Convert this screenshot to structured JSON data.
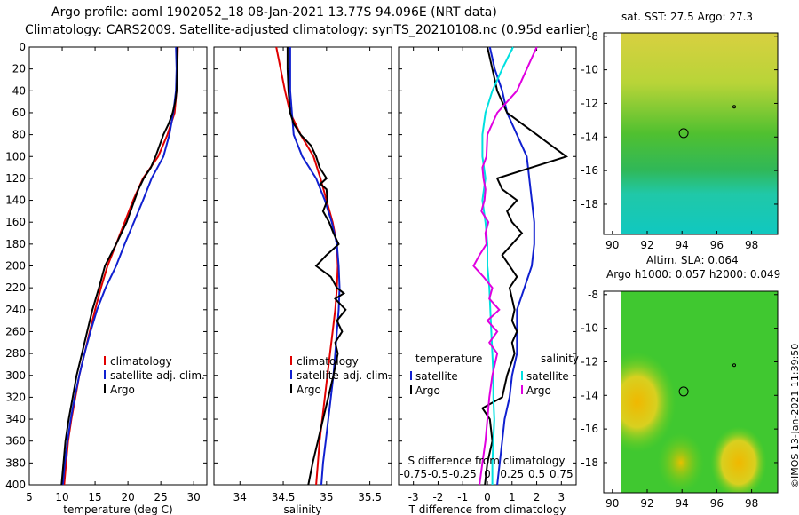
{
  "header": {
    "line1": "Argo profile: aoml 1902052_18 08-Jan-2021 13.77S 94.096E (NRT data)",
    "line2": "Climatology: CARS2009. Satellite-adjusted climatology: synTS_20210108.nc (0.95d earlier)"
  },
  "colors": {
    "climatology": "#e00000",
    "satellite": "#1020d0",
    "argo": "#000000",
    "sat_temp": "#00e0e0",
    "salinity_diff": "#e000e0"
  },
  "chart_data": [
    {
      "type": "line",
      "id": "temperature",
      "xlabel": "temperature (deg C)",
      "ylabel": "depth",
      "xlim": [
        5,
        32
      ],
      "ylim": [
        400,
        0
      ],
      "xticks": [
        "5",
        "10",
        "15",
        "20",
        "25",
        "30"
      ],
      "yticks": [
        "0",
        "20",
        "40",
        "60",
        "80",
        "100",
        "120",
        "140",
        "160",
        "180",
        "200",
        "220",
        "240",
        "260",
        "280",
        "300",
        "320",
        "340",
        "360",
        "380",
        "400"
      ],
      "legend": [
        "climatology",
        "satellite-adj. clim.",
        "Argo"
      ],
      "series": [
        {
          "name": "climatology",
          "depth": [
            0,
            20,
            40,
            60,
            80,
            100,
            120,
            140,
            160,
            180,
            200,
            220,
            240,
            260,
            280,
            300,
            320,
            340,
            360,
            380,
            400
          ],
          "values": [
            27.6,
            27.5,
            27.4,
            27.1,
            26.0,
            24.6,
            22.3,
            20.8,
            19.5,
            18.2,
            16.9,
            15.9,
            15.0,
            14.2,
            13.4,
            12.6,
            12.0,
            11.4,
            10.9,
            10.6,
            10.3
          ]
        },
        {
          "name": "satellite-adj. clim.",
          "depth": [
            0,
            20,
            40,
            60,
            80,
            100,
            120,
            140,
            160,
            180,
            200,
            220,
            240,
            260,
            280,
            300,
            320,
            340,
            360,
            380,
            400
          ],
          "values": [
            27.3,
            27.4,
            27.3,
            26.9,
            26.3,
            25.4,
            23.6,
            22.3,
            20.9,
            19.5,
            18.2,
            16.6,
            15.3,
            14.3,
            13.4,
            12.6,
            11.9,
            11.3,
            10.8,
            10.4,
            10.1
          ]
        },
        {
          "name": "Argo",
          "depth": [
            0,
            20,
            40,
            50,
            60,
            70,
            80,
            90,
            100,
            110,
            120,
            130,
            140,
            160,
            180,
            200,
            220,
            240,
            260,
            280,
            300,
            320,
            340,
            360,
            380,
            400
          ],
          "values": [
            27.5,
            27.5,
            27.4,
            27.2,
            26.8,
            26.2,
            25.4,
            24.8,
            24.2,
            23.5,
            22.4,
            21.6,
            21.0,
            19.8,
            18.2,
            16.5,
            15.6,
            14.6,
            13.8,
            13.0,
            12.2,
            11.6,
            11.0,
            10.5,
            10.2,
            9.9
          ]
        }
      ]
    },
    {
      "type": "line",
      "id": "salinity",
      "xlabel": "salinity",
      "ylabel": "depth",
      "xlim": [
        33.7,
        35.75
      ],
      "ylim": [
        400,
        0
      ],
      "xticks": [
        "34",
        "34.5",
        "35",
        "35.5"
      ],
      "legend": [
        "climatology",
        "satellite-adj. clim.",
        "Argo"
      ],
      "series": [
        {
          "name": "climatology",
          "depth": [
            0,
            20,
            40,
            60,
            80,
            100,
            120,
            140,
            160,
            180,
            200,
            220,
            240,
            260,
            280,
            300,
            320,
            340,
            360,
            380,
            400
          ],
          "values": [
            34.42,
            34.47,
            34.52,
            34.58,
            34.7,
            34.85,
            34.93,
            35.0,
            35.07,
            35.12,
            35.13,
            35.12,
            35.1,
            35.07,
            35.04,
            35.01,
            34.98,
            34.95,
            34.92,
            34.9,
            34.88
          ]
        },
        {
          "name": "satellite-adj. clim.",
          "depth": [
            0,
            20,
            40,
            60,
            80,
            100,
            120,
            140,
            160,
            180,
            200,
            220,
            240,
            260,
            280,
            300,
            320,
            340,
            360,
            380,
            400
          ],
          "values": [
            34.58,
            34.58,
            34.58,
            34.6,
            34.62,
            34.72,
            34.88,
            34.98,
            35.06,
            35.12,
            35.14,
            35.15,
            35.14,
            35.12,
            35.1,
            35.08,
            35.05,
            35.02,
            34.99,
            34.96,
            34.94
          ]
        },
        {
          "name": "Argo",
          "depth": [
            0,
            20,
            40,
            60,
            70,
            80,
            90,
            100,
            110,
            120,
            125,
            130,
            140,
            150,
            160,
            170,
            180,
            190,
            200,
            210,
            220,
            225,
            230,
            240,
            250,
            260,
            270,
            280,
            300,
            320,
            340,
            360,
            380,
            400
          ],
          "values": [
            34.55,
            34.55,
            34.56,
            34.58,
            34.62,
            34.7,
            34.82,
            34.88,
            34.92,
            35.0,
            34.93,
            35.0,
            35.01,
            34.96,
            35.03,
            35.08,
            35.14,
            35.0,
            34.88,
            35.05,
            35.12,
            35.2,
            35.1,
            35.22,
            35.12,
            35.18,
            35.1,
            35.13,
            35.08,
            35.02,
            34.96,
            34.9,
            34.84,
            34.79
          ]
        }
      ]
    },
    {
      "type": "line",
      "id": "difference",
      "xlabel": "T difference from climatology",
      "xlabel_top": "S difference from climatology",
      "ylabel": "depth",
      "xlim": [
        -3.6,
        3.6
      ],
      "ylim": [
        400,
        0
      ],
      "xticks": [
        "-3",
        "-2",
        "-1",
        "0",
        "1",
        "2",
        "3"
      ],
      "xticks_top": [
        "-0.75",
        "-0.5",
        "-0.25",
        "0",
        "0.25",
        "0.5",
        "0.75"
      ],
      "legend_temperature_title": "temperature",
      "legend_salinity_title": "salinity",
      "legend_temperature": [
        "satellite",
        "Argo"
      ],
      "legend_salinity": [
        "satellite",
        "Argo"
      ],
      "series": [
        {
          "name": "temperature satellite",
          "depth": [
            0,
            20,
            40,
            60,
            80,
            100,
            120,
            140,
            160,
            180,
            200,
            220,
            240,
            260,
            280,
            300,
            320,
            340,
            360,
            380,
            400
          ],
          "values": [
            0.1,
            0.3,
            0.6,
            0.8,
            1.2,
            1.6,
            1.7,
            1.8,
            1.9,
            1.9,
            1.8,
            1.5,
            1.2,
            1.2,
            1.2,
            1.0,
            0.9,
            0.7,
            0.6,
            0.5,
            0.4
          ]
        },
        {
          "name": "temperature Argo",
          "depth": [
            0,
            20,
            40,
            60,
            70,
            80,
            90,
            100,
            110,
            120,
            130,
            140,
            150,
            160,
            170,
            180,
            190,
            200,
            210,
            220,
            230,
            240,
            250,
            260,
            270,
            280,
            300,
            320,
            330,
            340,
            360,
            380,
            400
          ],
          "values": [
            0.0,
            0.2,
            0.4,
            0.8,
            1.4,
            2.0,
            2.6,
            3.2,
            1.8,
            0.4,
            0.6,
            1.2,
            0.8,
            1.0,
            1.4,
            1.0,
            0.6,
            0.9,
            1.2,
            0.9,
            1.0,
            1.1,
            1.0,
            1.2,
            1.0,
            1.1,
            0.8,
            0.6,
            -0.2,
            0.1,
            0.2,
            0.0,
            -0.1
          ]
        },
        {
          "name": "salinity satellite",
          "depth": [
            0,
            20,
            40,
            60,
            80,
            100,
            120,
            140,
            160,
            180,
            200,
            220,
            240,
            260,
            280,
            300,
            320,
            340,
            360,
            380,
            400
          ],
          "values": [
            0.26,
            0.15,
            0.05,
            -0.02,
            -0.05,
            -0.05,
            -0.02,
            -0.05,
            -0.02,
            0.0,
            0.0,
            0.02,
            0.03,
            0.04,
            0.05,
            0.06,
            0.06,
            0.07,
            0.06,
            0.05,
            0.05
          ]
        },
        {
          "name": "salinity Argo",
          "depth": [
            0,
            20,
            40,
            60,
            80,
            100,
            110,
            120,
            130,
            140,
            150,
            160,
            170,
            180,
            190,
            200,
            210,
            220,
            230,
            240,
            250,
            260,
            270,
            280,
            300,
            320,
            340,
            360,
            380,
            400
          ],
          "values": [
            0.5,
            0.4,
            0.3,
            0.1,
            0.0,
            -0.01,
            -0.05,
            -0.04,
            -0.02,
            -0.03,
            -0.06,
            0.01,
            -0.02,
            -0.01,
            -0.08,
            -0.14,
            -0.04,
            0.05,
            0.02,
            0.12,
            0.0,
            0.1,
            0.02,
            0.1,
            0.05,
            0.02,
            0.0,
            -0.02,
            -0.05,
            -0.08
          ]
        }
      ]
    }
  ],
  "maps": {
    "sst": {
      "title": "sat. SST: 27.5 Argo: 27.3",
      "xticks": [
        "90",
        "92",
        "94",
        "96",
        "98"
      ],
      "yticks": [
        "-8",
        "-10",
        "-12",
        "-14",
        "-16",
        "-18"
      ],
      "xlim": [
        89.5,
        99.5
      ],
      "ylim": [
        -19.8,
        -7.8
      ],
      "profile_lon": 94.096,
      "profile_lat": -13.77,
      "marker_lon": 97.0,
      "marker_lat": -12.2
    },
    "sla": {
      "title_line1": "Altim. SLA: 0.064",
      "title_line2": "Argo h1000: 0.057 h2000: 0.049",
      "xticks": [
        "90",
        "92",
        "94",
        "96",
        "98"
      ],
      "yticks": [
        "-8",
        "-10",
        "-12",
        "-14",
        "-16",
        "-18"
      ],
      "xlim": [
        89.5,
        99.5
      ],
      "ylim": [
        -19.8,
        -7.8
      ],
      "profile_lon": 94.096,
      "profile_lat": -13.77,
      "marker_lon": 97.0,
      "marker_lat": -12.2
    }
  },
  "credit": "©IMOS 13-Jan-2021 11:39:50"
}
